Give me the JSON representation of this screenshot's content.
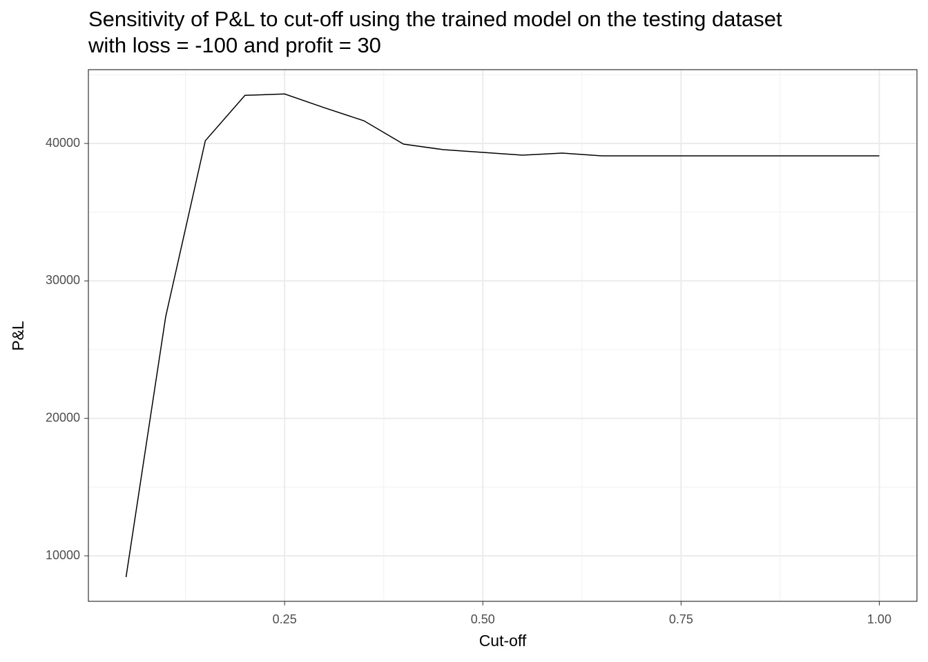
{
  "chart_data": {
    "type": "line",
    "title": [
      "Sensitivity of P&L to cut-off using the trained model on the testing dataset",
      "with loss = -100 and profit = 30"
    ],
    "x_label": "Cut-off",
    "y_label": "P&L",
    "x": [
      0.05,
      0.1,
      0.15,
      0.2,
      0.25,
      0.3,
      0.35,
      0.4,
      0.45,
      0.5,
      0.55,
      0.6,
      0.65,
      0.7,
      0.75,
      0.8,
      0.85,
      0.9,
      0.95,
      1.0
    ],
    "series": [
      {
        "color": "#000000",
        "values": [
          8450,
          27400,
          40200,
          43500,
          43600,
          42600,
          41650,
          39950,
          39550,
          39350,
          39150,
          39300,
          39100,
          39100,
          39100,
          39100,
          39100,
          39100,
          39100,
          39100
        ]
      }
    ],
    "xlim": [
      0.0025,
      1.0475
    ],
    "ylim": [
      6690,
      45370
    ],
    "xticks": [
      {
        "value": 0.25,
        "label": "0.25"
      },
      {
        "value": 0.5,
        "label": "0.50"
      },
      {
        "value": 0.75,
        "label": "0.75"
      },
      {
        "value": 1.0,
        "label": "1.00"
      }
    ],
    "yticks": [
      10000,
      20000,
      30000,
      40000
    ],
    "x_minor_grid": [
      0.125,
      0.375,
      0.625,
      0.875
    ],
    "y_minor_grid": [
      15000,
      25000,
      35000,
      45000
    ],
    "grid": true
  }
}
